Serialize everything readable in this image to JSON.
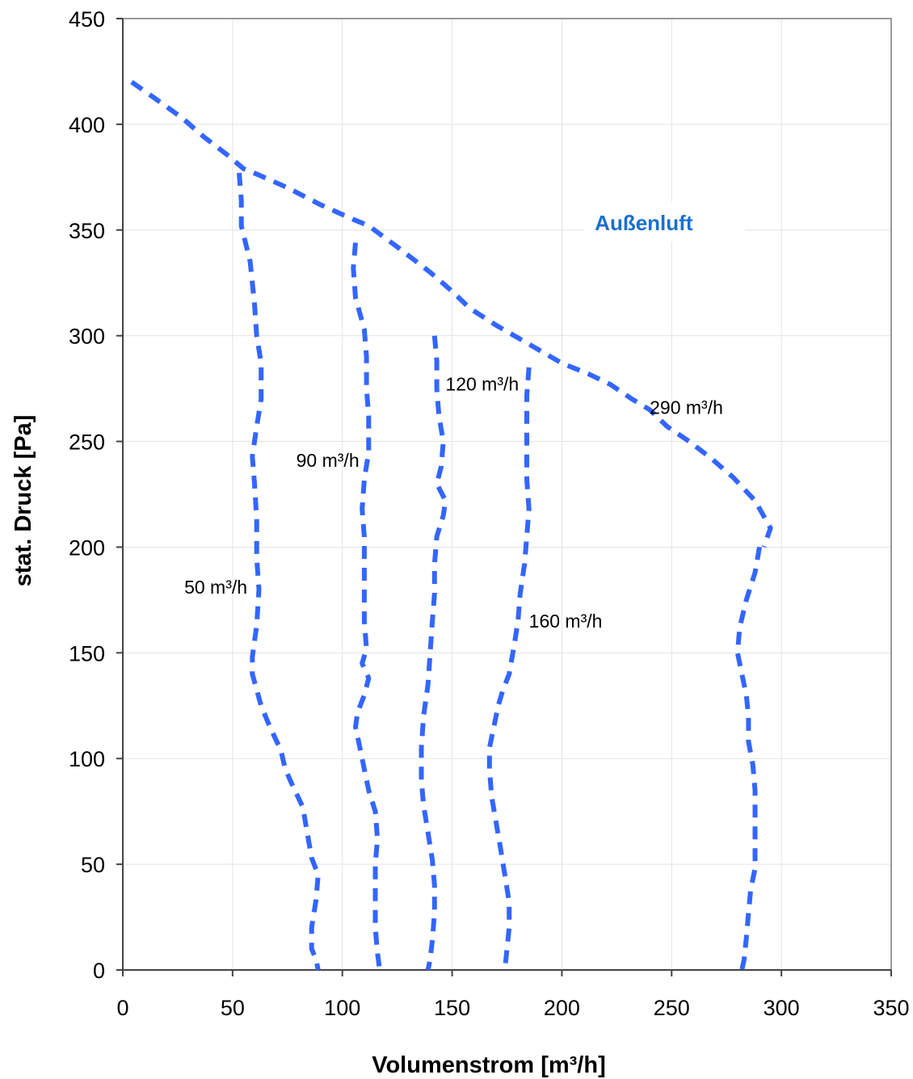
{
  "chart_data": {
    "type": "line",
    "xlabel": "Volumenstrom [m³/h]",
    "ylabel": "stat. Druck [Pa]",
    "xlim": [
      0,
      350
    ],
    "ylim": [
      0,
      450
    ],
    "xticks": [
      0,
      50,
      100,
      150,
      200,
      250,
      300,
      350
    ],
    "yticks": [
      0,
      50,
      100,
      150,
      200,
      250,
      300,
      350,
      400,
      450
    ],
    "grid": true,
    "legend": "none",
    "series": [
      {
        "name": "Außenluft",
        "label_at": [
          215,
          350
        ],
        "points": [
          [
            4,
            420
          ],
          [
            15,
            412
          ],
          [
            27,
            403
          ],
          [
            37,
            394
          ],
          [
            47,
            386
          ],
          [
            55,
            379
          ],
          [
            62,
            376
          ],
          [
            75,
            370
          ],
          [
            90,
            362
          ],
          [
            105,
            355
          ],
          [
            112,
            352
          ],
          [
            125,
            342
          ],
          [
            140,
            330
          ],
          [
            150,
            321
          ],
          [
            158,
            313
          ],
          [
            170,
            305
          ],
          [
            180,
            299
          ],
          [
            190,
            293
          ],
          [
            200,
            287
          ],
          [
            212,
            282
          ],
          [
            222,
            277
          ],
          [
            232,
            270
          ],
          [
            240,
            265
          ],
          [
            248,
            257
          ],
          [
            258,
            250
          ],
          [
            268,
            242
          ],
          [
            278,
            233
          ],
          [
            288,
            222
          ],
          [
            295,
            209
          ],
          [
            292,
            200
          ]
        ]
      },
      {
        "name": "50 m³/h",
        "label_at": [
          28,
          178
        ],
        "points": [
          [
            53,
            377
          ],
          [
            54,
            364
          ],
          [
            54,
            352
          ],
          [
            58,
            335
          ],
          [
            60,
            315
          ],
          [
            61,
            300
          ],
          [
            63,
            287
          ],
          [
            63,
            270
          ],
          [
            61,
            257
          ],
          [
            59,
            243
          ],
          [
            60,
            230
          ],
          [
            61,
            213
          ],
          [
            61,
            195
          ],
          [
            62,
            180
          ],
          [
            61,
            163
          ],
          [
            59,
            148
          ],
          [
            59,
            140
          ],
          [
            63,
            125
          ],
          [
            67,
            115
          ],
          [
            72,
            104
          ],
          [
            74,
            95
          ],
          [
            77,
            88
          ],
          [
            82,
            77
          ],
          [
            84,
            65
          ],
          [
            86,
            53
          ],
          [
            89,
            45
          ],
          [
            88,
            33
          ],
          [
            86,
            20
          ],
          [
            86,
            10
          ],
          [
            88,
            5
          ],
          [
            89,
            0
          ]
        ]
      },
      {
        "name": "90 m³/h",
        "label_at": [
          79,
          238
        ],
        "points": [
          [
            106,
            344
          ],
          [
            105,
            332
          ],
          [
            106,
            318
          ],
          [
            110,
            303
          ],
          [
            111,
            290
          ],
          [
            111,
            275
          ],
          [
            112,
            262
          ],
          [
            112,
            245
          ],
          [
            110,
            232
          ],
          [
            109,
            218
          ],
          [
            110,
            205
          ],
          [
            110,
            193
          ],
          [
            110,
            178
          ],
          [
            110,
            165
          ],
          [
            111,
            152
          ],
          [
            109,
            145
          ],
          [
            112,
            138
          ],
          [
            110,
            130
          ],
          [
            107,
            122
          ],
          [
            106,
            115
          ],
          [
            108,
            105
          ],
          [
            110,
            95
          ],
          [
            112,
            85
          ],
          [
            115,
            75
          ],
          [
            116,
            62
          ],
          [
            115,
            50
          ],
          [
            115,
            35
          ],
          [
            115,
            20
          ],
          [
            116,
            8
          ],
          [
            117,
            0
          ]
        ]
      },
      {
        "name": "120 m³/h",
        "label_at": [
          147,
          274
        ],
        "points": [
          [
            142,
            300
          ],
          [
            143,
            288
          ],
          [
            143,
            275
          ],
          [
            144,
            262
          ],
          [
            146,
            250
          ],
          [
            145,
            238
          ],
          [
            143,
            230
          ],
          [
            147,
            222
          ],
          [
            146,
            215
          ],
          [
            143,
            205
          ],
          [
            142,
            192
          ],
          [
            142,
            178
          ],
          [
            141,
            165
          ],
          [
            140,
            150
          ],
          [
            139,
            135
          ],
          [
            137,
            120
          ],
          [
            136,
            105
          ],
          [
            136,
            90
          ],
          [
            137,
            78
          ],
          [
            139,
            65
          ],
          [
            141,
            52
          ],
          [
            142,
            40
          ],
          [
            142,
            27
          ],
          [
            141,
            14
          ],
          [
            140,
            5
          ],
          [
            139,
            0
          ]
        ]
      },
      {
        "name": "160 m³/h",
        "label_at": [
          185,
          162
        ],
        "points": [
          [
            185,
            285
          ],
          [
            184,
            272
          ],
          [
            184,
            258
          ],
          [
            184,
            245
          ],
          [
            184,
            232
          ],
          [
            185,
            218
          ],
          [
            184,
            205
          ],
          [
            183,
            192
          ],
          [
            181,
            178
          ],
          [
            180,
            165
          ],
          [
            178,
            152
          ],
          [
            176,
            140
          ],
          [
            173,
            132
          ],
          [
            171,
            125
          ],
          [
            169,
            115
          ],
          [
            167,
            105
          ],
          [
            167,
            95
          ],
          [
            168,
            82
          ],
          [
            170,
            70
          ],
          [
            172,
            58
          ],
          [
            174,
            45
          ],
          [
            176,
            32
          ],
          [
            176,
            20
          ],
          [
            175,
            10
          ],
          [
            174,
            0
          ]
        ]
      },
      {
        "name": "290 m³/h",
        "label_at": [
          240,
          263
        ],
        "points": [
          [
            290,
            200
          ],
          [
            288,
            188
          ],
          [
            284,
            175
          ],
          [
            281,
            162
          ],
          [
            280,
            150
          ],
          [
            282,
            140
          ],
          [
            284,
            130
          ],
          [
            285,
            120
          ],
          [
            285,
            108
          ],
          [
            287,
            97
          ],
          [
            288,
            85
          ],
          [
            288,
            72
          ],
          [
            288,
            60
          ],
          [
            288,
            48
          ],
          [
            286,
            38
          ],
          [
            285,
            27
          ],
          [
            284,
            15
          ],
          [
            283,
            5
          ],
          [
            282,
            0
          ]
        ]
      }
    ]
  }
}
